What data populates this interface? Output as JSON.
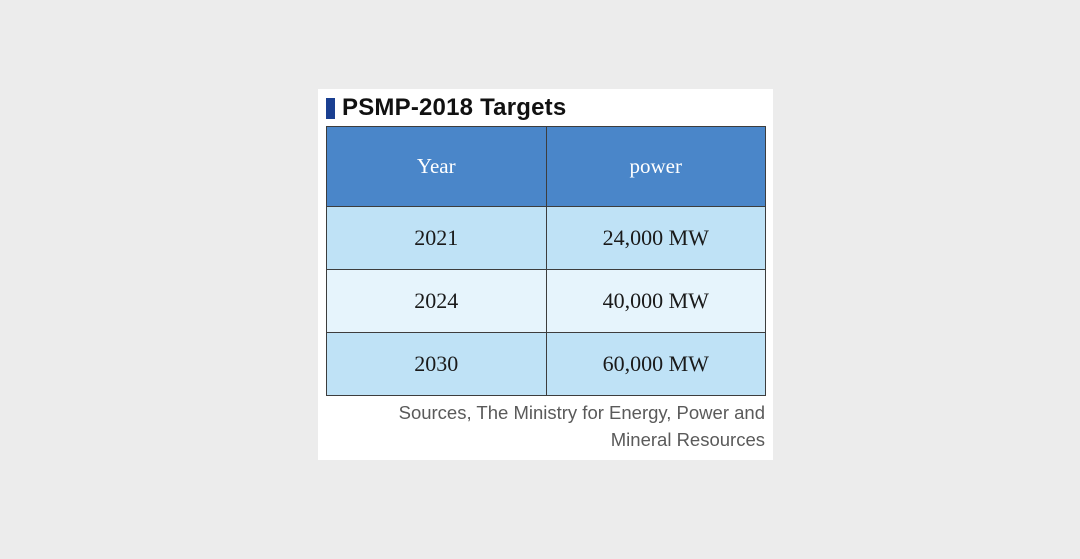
{
  "title": "PSMP-2018 Targets",
  "table": {
    "headers": [
      "Year",
      "power"
    ],
    "rows": [
      [
        "2021",
        "24,000 MW"
      ],
      [
        "2024",
        "40,000 MW"
      ],
      [
        "2030",
        "60,000 MW"
      ]
    ]
  },
  "source": {
    "line1": "Sources, The Ministry for Energy, Power and",
    "line2": "Mineral Resources"
  },
  "colors": {
    "accent_bar": "#1a3f91",
    "header_bg": "#4a86c9",
    "row_alt_1": "#bfe2f6",
    "row_alt_2": "#e6f4fc"
  }
}
